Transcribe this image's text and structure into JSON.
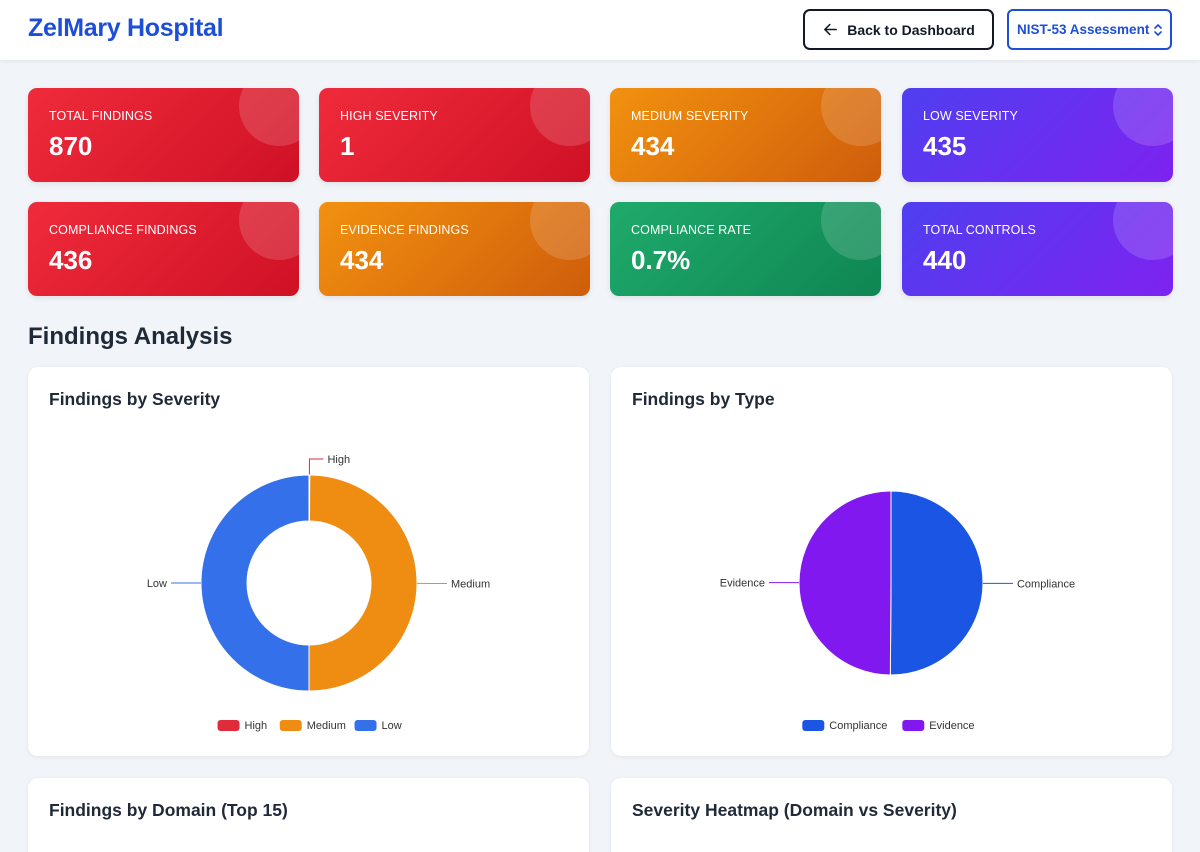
{
  "header": {
    "title": "ZelMary Hospital",
    "back_label": "Back to Dashboard",
    "assessment_selected": "NIST-53 Assessment"
  },
  "stats": [
    {
      "label": "TOTAL FINDINGS",
      "value": "870",
      "color": "#e11d2e"
    },
    {
      "label": "HIGH SEVERITY",
      "value": "1",
      "color": "#e11d2e"
    },
    {
      "label": "MEDIUM SEVERITY",
      "value": "434",
      "color": "#ea7c0c"
    },
    {
      "label": "LOW SEVERITY",
      "value": "435",
      "color": "#6530f0"
    },
    {
      "label": "COMPLIANCE FINDINGS",
      "value": "436",
      "color": "#e11d2e"
    },
    {
      "label": "EVIDENCE FINDINGS",
      "value": "434",
      "color": "#ea7c0c"
    },
    {
      "label": "COMPLIANCE RATE",
      "value": "0.7%",
      "color": "#189a60"
    },
    {
      "label": "TOTAL CONTROLS",
      "value": "440",
      "color": "#6530f0"
    }
  ],
  "section": {
    "title": "Findings Analysis"
  },
  "panels": {
    "severity_title": "Findings by Severity",
    "type_title": "Findings by Type",
    "domain_title": "Findings by Domain (Top 15)",
    "heatmap_title": "Severity Heatmap (Domain vs Severity)"
  },
  "chart_data": [
    {
      "type": "pie",
      "variant": "doughnut",
      "title": "Findings by Severity",
      "categories": [
        "High",
        "Medium",
        "Low"
      ],
      "values": [
        1,
        434,
        435
      ],
      "colors": [
        "#e02b3a",
        "#ef8d12",
        "#3370ea"
      ],
      "legend": "bottom"
    },
    {
      "type": "pie",
      "title": "Findings by Type",
      "categories": [
        "Compliance",
        "Evidence"
      ],
      "values": [
        436,
        434
      ],
      "colors": [
        "#1a56e3",
        "#8218f0"
      ],
      "legend": "bottom"
    }
  ]
}
